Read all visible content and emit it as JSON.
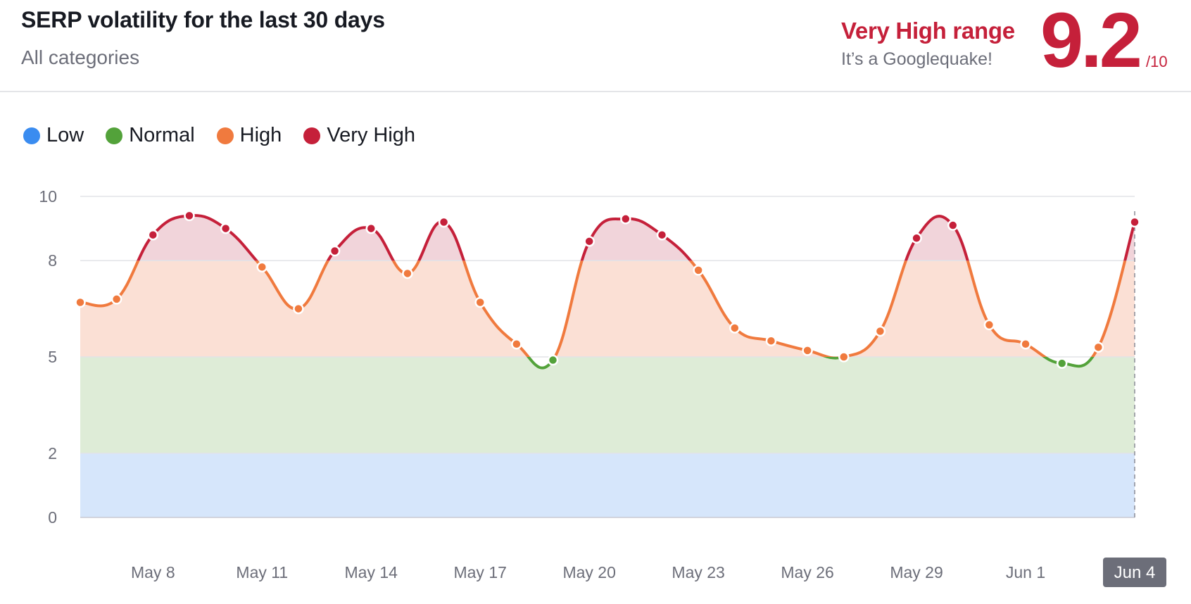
{
  "header": {
    "title": "SERP volatility for the last 30 days",
    "subtitle": "All categories",
    "range_label": "Very High range",
    "range_description": "It’s a Googlequake!",
    "score": "9.2",
    "score_max": "/10"
  },
  "legend": [
    {
      "label": "Low",
      "color": "#3a8cf0"
    },
    {
      "label": "Normal",
      "color": "#53a23a"
    },
    {
      "label": "High",
      "color": "#f07a3e"
    },
    {
      "label": "Very High",
      "color": "#c5203a"
    }
  ],
  "colors": {
    "band_low": "#d6e6fb",
    "band_normal": "#deecd7",
    "band_high": "#fbe0d5",
    "band_very_high": "#f1d4da",
    "low": "#3a8cf0",
    "normal": "#53a23a",
    "high": "#f07a3e",
    "very_high": "#c5203a",
    "selected_label_bg": "#6c6e79"
  },
  "chart_data": {
    "type": "line",
    "title": "SERP volatility for the last 30 days",
    "ylim": [
      0,
      10
    ],
    "yticks": [
      0,
      2,
      5,
      8,
      10
    ],
    "bands": [
      {
        "name": "Low",
        "range": [
          0,
          2
        ]
      },
      {
        "name": "Normal",
        "range": [
          2,
          5
        ]
      },
      {
        "name": "High",
        "range": [
          5,
          8
        ]
      },
      {
        "name": "Very High",
        "range": [
          8,
          10
        ]
      }
    ],
    "x": [
      "May 6",
      "May 7",
      "May 8",
      "May 9",
      "May 10",
      "May 11",
      "May 12",
      "May 13",
      "May 14",
      "May 15",
      "May 16",
      "May 17",
      "May 18",
      "May 19",
      "May 20",
      "May 21",
      "May 22",
      "May 23",
      "May 24",
      "May 25",
      "May 26",
      "May 27",
      "May 28",
      "May 29",
      "May 30",
      "May 31",
      "Jun 1",
      "Jun 2",
      "Jun 3",
      "Jun 4"
    ],
    "values": [
      6.7,
      6.8,
      8.8,
      9.4,
      9.0,
      7.8,
      6.5,
      8.3,
      9.0,
      7.6,
      9.2,
      6.7,
      5.4,
      4.9,
      8.6,
      9.3,
      8.8,
      7.7,
      5.9,
      5.5,
      5.2,
      5.0,
      5.8,
      8.7,
      9.1,
      6.0,
      5.4,
      4.8,
      5.3,
      9.2
    ],
    "xtick_labels": [
      "May 8",
      "May 11",
      "May 14",
      "May 17",
      "May 20",
      "May 23",
      "May 26",
      "May 29",
      "Jun 1"
    ],
    "selected_label": "Jun 4"
  }
}
